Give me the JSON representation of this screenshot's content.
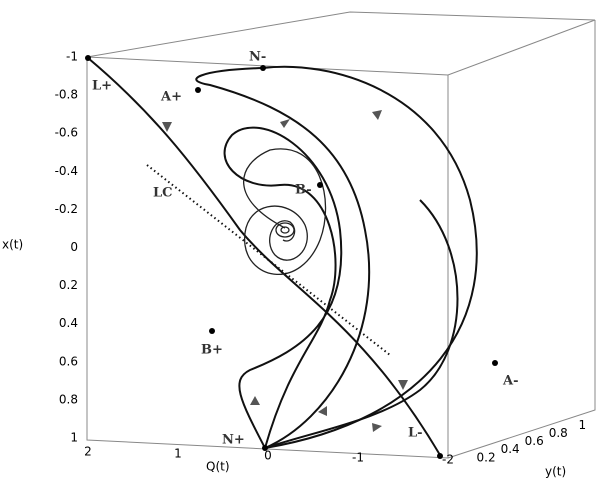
{
  "axes": {
    "x": {
      "label": "x(t)",
      "ticks": [
        "-1",
        "-0.8",
        "-0.6",
        "-0.4",
        "-0.2",
        "0",
        "0.2",
        "0.4",
        "0.6",
        "0.8",
        "1"
      ]
    },
    "q": {
      "label": "Q(t)",
      "ticks": [
        "2",
        "1",
        "0",
        "-1",
        "-2"
      ]
    },
    "y": {
      "label": "y(t)",
      "ticks": [
        "0.2",
        "0.4",
        "0.6",
        "0.8",
        "1"
      ]
    }
  },
  "points": [
    {
      "label": "L+"
    },
    {
      "label": "N-"
    },
    {
      "label": "A+"
    },
    {
      "label": "B-"
    },
    {
      "label": "LC"
    },
    {
      "label": "B+"
    },
    {
      "label": "A-"
    },
    {
      "label": "N+"
    },
    {
      "label": "L-"
    }
  ]
}
